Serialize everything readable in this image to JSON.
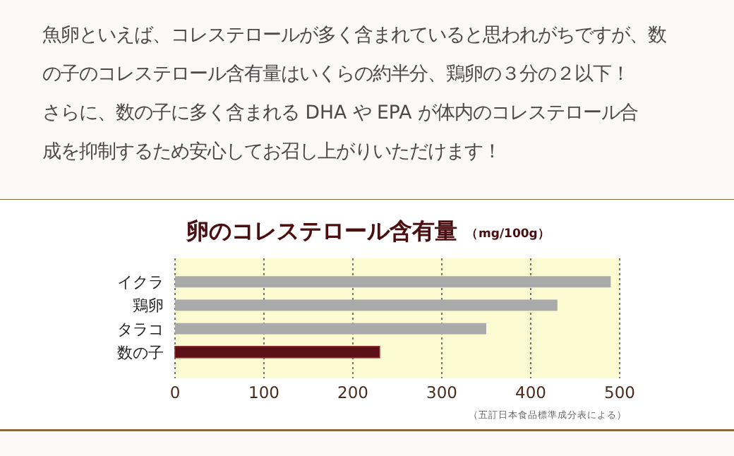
{
  "chart_data": {
    "type": "bar",
    "orientation": "horizontal",
    "title": "卵のコレステロール含有量",
    "subtitle": "（mg/100g）",
    "categories": [
      "イクラ",
      "鶏卵",
      "タラコ",
      "数の子"
    ],
    "values": [
      490,
      430,
      350,
      230
    ],
    "colors": [
      "#aaaaaa",
      "#aaaaaa",
      "#aaaaaa",
      "#5c1016"
    ],
    "xlim": [
      0,
      500
    ],
    "xticks": [
      0,
      100,
      200,
      300,
      400,
      500
    ],
    "grid": "x",
    "annotations": [
      "魚卵といえば、コレステロールが多く含まれていると思われがちですが、数",
      "の子のコレステロール含有量はいくらの約半分、鶏卵の３分の２以下！",
      "さらに、数の子に多く含まれる DHA や EPA が体内のコレステロール合",
      "成を抑制するため安心してお召し上がりいただけます！",
      "（五訂日本食品標準成分表による）"
    ]
  }
}
